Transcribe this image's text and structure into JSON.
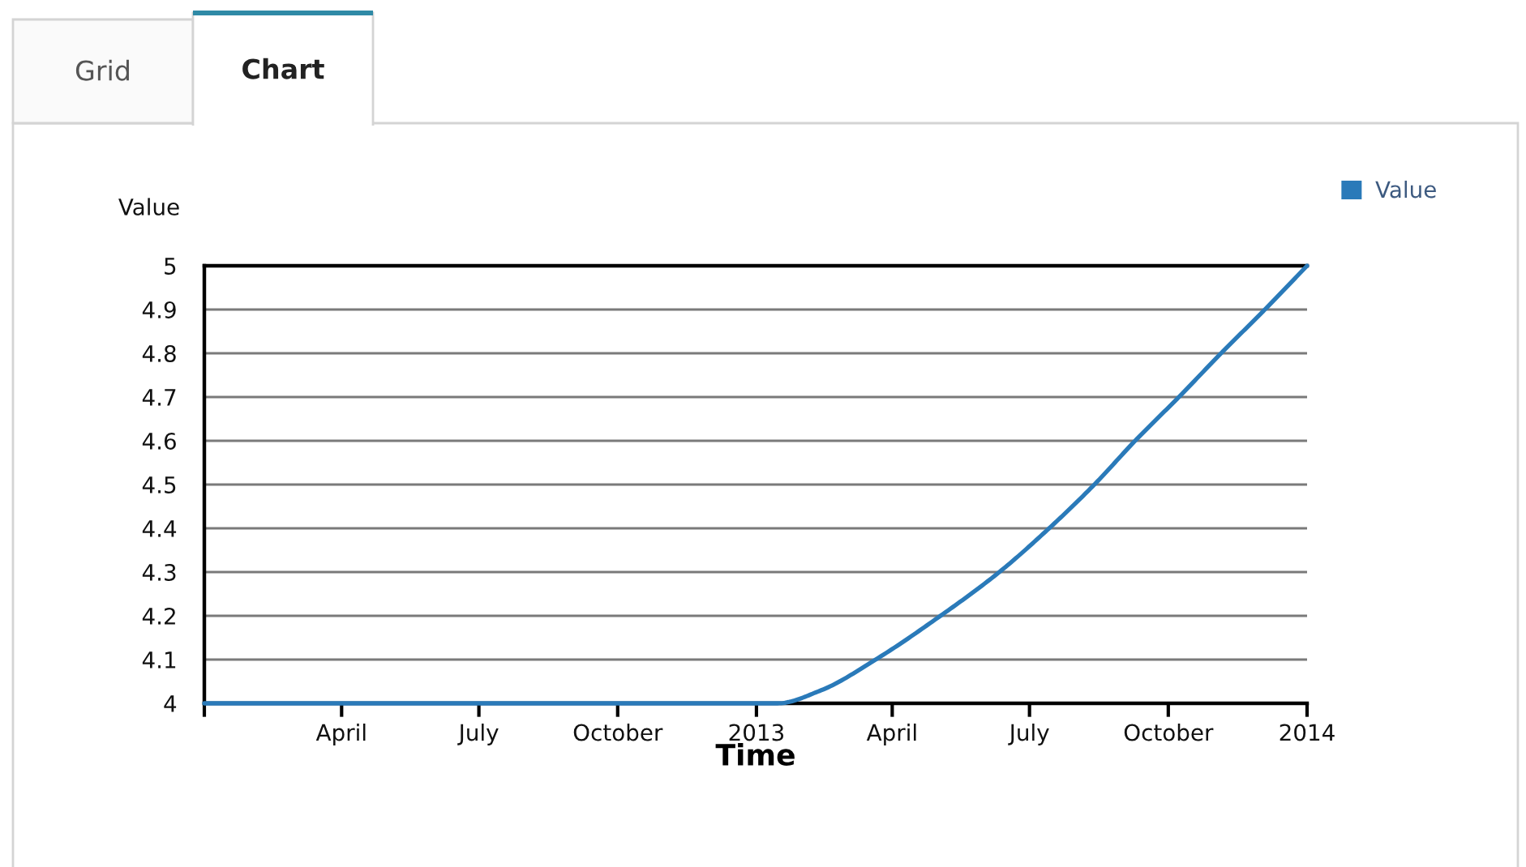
{
  "chart_data": {
    "type": "line",
    "annotations": [
      "Grid",
      "Chart"
    ],
    "xlabel": "Time",
    "ylabel": "Value",
    "x": [
      "2012-01-01",
      "2013-01-15",
      "2013-02-13",
      "2013-03-21",
      "2013-05-03",
      "2013-06-11",
      "2013-07-14",
      "2013-08-13",
      "2013-09-09",
      "2013-10-08",
      "2013-11-05",
      "2013-12-04",
      "2014-01-01"
    ],
    "series": [
      {
        "name": "Value",
        "color": "#2a7ab9",
        "values": [
          4.0,
          4.0,
          4.03,
          4.1,
          4.2,
          4.3,
          4.4,
          4.5,
          4.6,
          4.7,
          4.8,
          4.9,
          5.0
        ]
      }
    ],
    "xlim": [
      "2012-01-01",
      "2014-01-01"
    ],
    "xticks": [
      {
        "value": "2012-01-01",
        "label": null
      },
      {
        "value": "2012-04-01",
        "label": "April"
      },
      {
        "value": "2012-07-01",
        "label": "July"
      },
      {
        "value": "2012-10-01",
        "label": "October"
      },
      {
        "value": "2013-01-01",
        "label": "2013"
      },
      {
        "value": "2013-04-01",
        "label": "April"
      },
      {
        "value": "2013-07-01",
        "label": "July"
      },
      {
        "value": "2013-10-01",
        "label": "October"
      },
      {
        "value": "2014-01-01",
        "label": "2014"
      }
    ],
    "ylim": [
      4,
      5
    ],
    "yticks": [
      4,
      4.1,
      4.2,
      4.3,
      4.4,
      4.5,
      4.6,
      4.7,
      4.8,
      4.9,
      5
    ],
    "grid": "y",
    "legend": "top right"
  }
}
